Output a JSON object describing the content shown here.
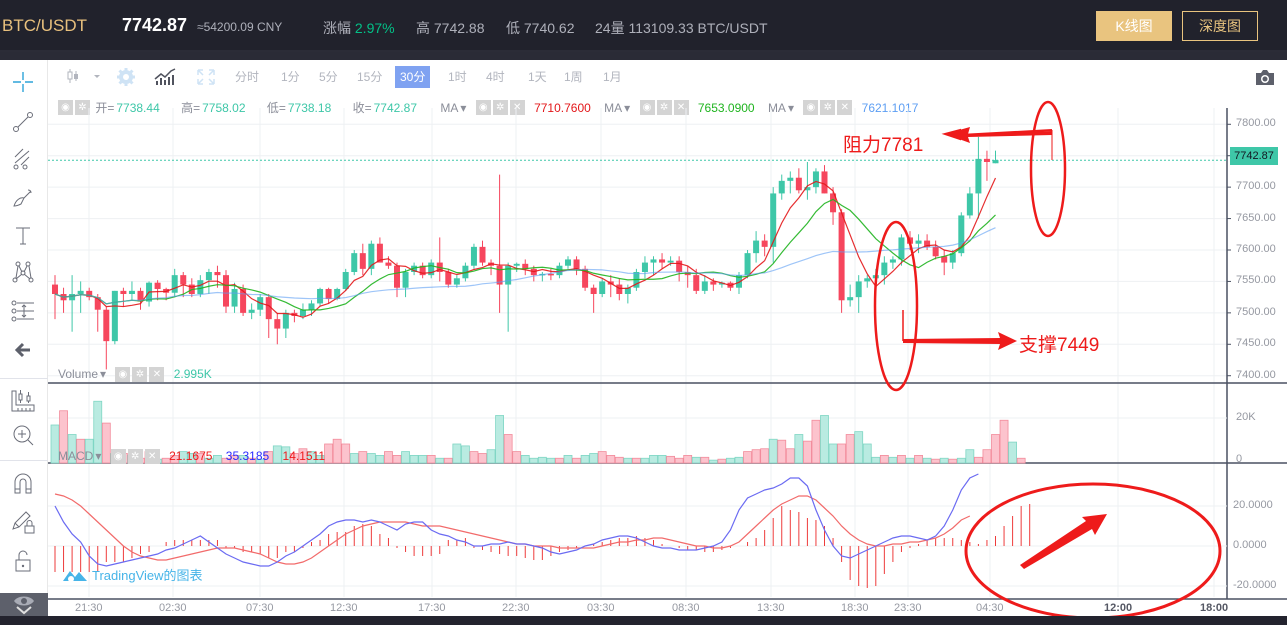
{
  "header": {
    "pair": "BTC/USDT",
    "last_price": "7742.87",
    "cny_price": "≈54200.09 CNY",
    "change_label": "涨幅",
    "change_value": "2.97%",
    "high_label": "高",
    "high_value": "7742.88",
    "low_label": "低",
    "low_value": "7740.62",
    "volume_label": "24量",
    "volume_value": "113109.33 BTC/USDT",
    "kline_button": "K线图",
    "depth_button": "深度图"
  },
  "toolbar": {
    "intervals": [
      "分时",
      "1分",
      "5分",
      "15分",
      "30分",
      "1时",
      "4时",
      "1天",
      "1周",
      "1月"
    ],
    "active_interval": "30分"
  },
  "left_tools": [
    "crosshair-icon",
    "trend-line-icon",
    "pitchfork-icon",
    "brush-icon",
    "text-icon",
    "pattern-icon",
    "measure-icon",
    "back-arrow-icon",
    "candles-ruler-icon",
    "zoom-in-icon",
    "magnet-icon",
    "lock-drawing-icon",
    "unlock-icon",
    "eye-icon"
  ],
  "legend": {
    "open_label": "开=",
    "open": "7738.44",
    "high_label": "高=",
    "high": "7758.02",
    "low_label": "低=",
    "low": "7738.18",
    "close_label": "收=",
    "close": "7742.87",
    "ma_label": "MA",
    "ma1": "7710.7600",
    "ma1_color": "#e3171a",
    "ma2": "7653.0900",
    "ma2_color": "#1fb41f",
    "ma3": "7621.1017",
    "ma3_color": "#5d9ef3"
  },
  "volume_legend": {
    "label": "Volume",
    "value": "2.995K"
  },
  "macd_legend": {
    "label": "MACD",
    "hist": "21.1675",
    "macd": "35.3185",
    "signal": "14.1511"
  },
  "watermark": "TradingView的图表",
  "annotations": {
    "resistance": "阻力7781",
    "support": "支撑7449"
  },
  "colors": {
    "up": "#3ec7a8",
    "down": "#f6465d",
    "accent": "#e9c47f",
    "active_tab": "#7fa2f1",
    "annotation": "#ee1b1b"
  },
  "chart_data": {
    "type": "candlestick",
    "title": "BTC/USDT 30分",
    "price_axis": {
      "ticks": [
        "7800.00",
        "7750.00",
        "7700.00",
        "7650.00",
        "7600.00",
        "7550.00",
        "7500.00",
        "7450.00",
        "7400.00"
      ],
      "range": [
        7390,
        7810
      ]
    },
    "current_price": "7742.87",
    "time_axis": [
      "21:30",
      "02:30",
      "07:30",
      "12:30",
      "17:30",
      "22:30",
      "03:30",
      "08:30",
      "13:30",
      "18:30",
      "23:30",
      "04:30",
      "12:00",
      "18:00"
    ],
    "volume_axis": {
      "ticks": [
        "20K",
        "0"
      ]
    },
    "macd_axis": {
      "ticks": [
        "20.0000",
        "0.0000",
        "-20.0000"
      ]
    },
    "candles": [
      [
        7545,
        7560,
        7490,
        7530
      ],
      [
        7530,
        7540,
        7500,
        7520
      ],
      [
        7520,
        7560,
        7470,
        7530
      ],
      [
        7530,
        7550,
        7500,
        7535
      ],
      [
        7535,
        7540,
        7520,
        7525
      ],
      [
        7525,
        7530,
        7470,
        7505
      ],
      [
        7505,
        7510,
        7410,
        7455
      ],
      [
        7455,
        7535,
        7450,
        7535
      ],
      [
        7535,
        7540,
        7510,
        7530
      ],
      [
        7530,
        7550,
        7520,
        7535
      ],
      [
        7535,
        7540,
        7505,
        7518
      ],
      [
        7518,
        7550,
        7510,
        7548
      ],
      [
        7548,
        7552,
        7520,
        7538
      ],
      [
        7538,
        7540,
        7520,
        7532
      ],
      [
        7532,
        7570,
        7525,
        7560
      ],
      [
        7560,
        7565,
        7525,
        7545
      ],
      [
        7545,
        7555,
        7525,
        7530
      ],
      [
        7530,
        7560,
        7525,
        7552
      ],
      [
        7552,
        7570,
        7530,
        7565
      ],
      [
        7565,
        7575,
        7540,
        7560
      ],
      [
        7560,
        7568,
        7500,
        7510
      ],
      [
        7510,
        7548,
        7500,
        7538
      ],
      [
        7538,
        7545,
        7495,
        7500
      ],
      [
        7500,
        7515,
        7490,
        7505
      ],
      [
        7505,
        7530,
        7495,
        7525
      ],
      [
        7525,
        7530,
        7460,
        7490
      ],
      [
        7490,
        7500,
        7450,
        7475
      ],
      [
        7475,
        7505,
        7460,
        7500
      ],
      [
        7500,
        7505,
        7485,
        7495
      ],
      [
        7495,
        7515,
        7490,
        7505
      ],
      [
        7505,
        7520,
        7495,
        7515
      ],
      [
        7515,
        7540,
        7510,
        7538
      ],
      [
        7538,
        7540,
        7515,
        7522
      ],
      [
        7522,
        7540,
        7520,
        7538
      ],
      [
        7538,
        7570,
        7535,
        7565
      ],
      [
        7565,
        7600,
        7560,
        7595
      ],
      [
        7595,
        7610,
        7560,
        7570
      ],
      [
        7570,
        7615,
        7560,
        7610
      ],
      [
        7610,
        7620,
        7590,
        7580
      ],
      [
        7580,
        7590,
        7570,
        7575
      ],
      [
        7575,
        7580,
        7525,
        7540
      ],
      [
        7540,
        7570,
        7525,
        7565
      ],
      [
        7565,
        7580,
        7560,
        7575
      ],
      [
        7575,
        7580,
        7555,
        7560
      ],
      [
        7560,
        7585,
        7555,
        7580
      ],
      [
        7580,
        7620,
        7550,
        7565
      ],
      [
        7565,
        7570,
        7540,
        7545
      ],
      [
        7545,
        7560,
        7540,
        7555
      ],
      [
        7555,
        7580,
        7550,
        7575
      ],
      [
        7575,
        7610,
        7570,
        7605
      ],
      [
        7605,
        7615,
        7575,
        7580
      ],
      [
        7580,
        7585,
        7560,
        7575
      ],
      [
        7575,
        7720,
        7500,
        7545
      ],
      [
        7545,
        7580,
        7470,
        7575
      ],
      [
        7575,
        7580,
        7565,
        7578
      ],
      [
        7578,
        7585,
        7560,
        7570
      ],
      [
        7570,
        7575,
        7550,
        7560
      ],
      [
        7560,
        7565,
        7550,
        7562
      ],
      [
        7562,
        7570,
        7552,
        7560
      ],
      [
        7560,
        7580,
        7555,
        7575
      ],
      [
        7575,
        7590,
        7570,
        7585
      ],
      [
        7585,
        7590,
        7560,
        7570
      ],
      [
        7570,
        7575,
        7535,
        7540
      ],
      [
        7540,
        7545,
        7500,
        7530
      ],
      [
        7530,
        7555,
        7525,
        7550
      ],
      [
        7550,
        7560,
        7525,
        7545
      ],
      [
        7545,
        7555,
        7520,
        7530
      ],
      [
        7530,
        7545,
        7515,
        7540
      ],
      [
        7540,
        7570,
        7535,
        7565
      ],
      [
        7565,
        7590,
        7555,
        7580
      ],
      [
        7580,
        7590,
        7560,
        7585
      ],
      [
        7585,
        7595,
        7570,
        7580
      ],
      [
        7580,
        7590,
        7575,
        7583
      ],
      [
        7583,
        7590,
        7550,
        7565
      ],
      [
        7565,
        7575,
        7540,
        7560
      ],
      [
        7560,
        7570,
        7530,
        7535
      ],
      [
        7535,
        7560,
        7530,
        7550
      ],
      [
        7550,
        7555,
        7535,
        7545
      ],
      [
        7545,
        7550,
        7540,
        7548
      ],
      [
        7548,
        7550,
        7535,
        7540
      ],
      [
        7540,
        7565,
        7530,
        7560
      ],
      [
        7560,
        7600,
        7555,
        7595
      ],
      [
        7595,
        7630,
        7580,
        7615
      ],
      [
        7615,
        7625,
        7590,
        7605
      ],
      [
        7605,
        7700,
        7580,
        7690
      ],
      [
        7690,
        7720,
        7680,
        7710
      ],
      [
        7710,
        7725,
        7690,
        7715
      ],
      [
        7715,
        7730,
        7690,
        7695
      ],
      [
        7695,
        7740,
        7680,
        7700
      ],
      [
        7700,
        7730,
        7690,
        7725
      ],
      [
        7725,
        7735,
        7690,
        7690
      ],
      [
        7690,
        7700,
        7640,
        7660
      ],
      [
        7660,
        7665,
        7500,
        7520
      ],
      [
        7520,
        7545,
        7510,
        7525
      ],
      [
        7525,
        7560,
        7500,
        7550
      ],
      [
        7550,
        7560,
        7540,
        7555
      ],
      [
        7555,
        7570,
        7545,
        7560
      ],
      [
        7560,
        7590,
        7545,
        7580
      ],
      [
        7580,
        7590,
        7570,
        7585
      ],
      [
        7585,
        7625,
        7575,
        7620
      ],
      [
        7620,
        7630,
        7600,
        7610
      ],
      [
        7610,
        7625,
        7595,
        7615
      ],
      [
        7615,
        7625,
        7600,
        7605
      ],
      [
        7605,
        7615,
        7585,
        7590
      ],
      [
        7590,
        7600,
        7560,
        7580
      ],
      [
        7580,
        7600,
        7570,
        7595
      ],
      [
        7595,
        7660,
        7590,
        7655
      ],
      [
        7655,
        7700,
        7650,
        7690
      ],
      [
        7690,
        7780,
        7650,
        7745
      ],
      [
        7745,
        7758,
        7710,
        7740
      ],
      [
        7738,
        7758,
        7738,
        7743
      ]
    ],
    "volume": [
      [
        1,
        0.4
      ],
      [
        0,
        0.55
      ],
      [
        1,
        0.3
      ],
      [
        0,
        0.25
      ],
      [
        1,
        0.25
      ],
      [
        1,
        0.65
      ],
      [
        0,
        0.42
      ],
      [
        1,
        0.1
      ],
      [
        0,
        0.1
      ],
      [
        1,
        0.08
      ],
      [
        0,
        0.05
      ],
      [
        0,
        0.12
      ],
      [
        1,
        0.04
      ],
      [
        0,
        0.05
      ],
      [
        0,
        0.08
      ],
      [
        1,
        0.12
      ],
      [
        1,
        0.1
      ],
      [
        0,
        0.1
      ],
      [
        1,
        0.05
      ],
      [
        1,
        0.08
      ],
      [
        0,
        0.05
      ],
      [
        0,
        0.08
      ],
      [
        1,
        0.08
      ],
      [
        0,
        0.05
      ],
      [
        1,
        0.04
      ],
      [
        0,
        0.12
      ],
      [
        1,
        0.18
      ],
      [
        1,
        0.17
      ],
      [
        0,
        0.1
      ],
      [
        0,
        0.15
      ],
      [
        1,
        0.12
      ],
      [
        1,
        0.08
      ],
      [
        0,
        0.2
      ],
      [
        0,
        0.25
      ],
      [
        0,
        0.2
      ],
      [
        1,
        0.1
      ],
      [
        0,
        0.12
      ],
      [
        1,
        0.1
      ],
      [
        1,
        0.08
      ],
      [
        0,
        0.12
      ],
      [
        0,
        0.08
      ],
      [
        1,
        0.12
      ],
      [
        1,
        0.08
      ],
      [
        1,
        0.08
      ],
      [
        0,
        0.08
      ],
      [
        1,
        0.05
      ],
      [
        0,
        0.05
      ],
      [
        1,
        0.2
      ],
      [
        1,
        0.18
      ],
      [
        0,
        0.12
      ],
      [
        0,
        0.1
      ],
      [
        1,
        0.14
      ],
      [
        1,
        0.5
      ],
      [
        0,
        0.3
      ],
      [
        0,
        0.12
      ],
      [
        1,
        0.08
      ],
      [
        1,
        0.05
      ],
      [
        1,
        0.06
      ],
      [
        1,
        0.05
      ],
      [
        0,
        0.05
      ],
      [
        1,
        0.08
      ],
      [
        0,
        0.05
      ],
      [
        1,
        0.08
      ],
      [
        1,
        0.1
      ],
      [
        0,
        0.12
      ],
      [
        0,
        0.08
      ],
      [
        0,
        0.06
      ],
      [
        1,
        0.05
      ],
      [
        0,
        0.05
      ],
      [
        1,
        0.05
      ],
      [
        1,
        0.08
      ],
      [
        1,
        0.08
      ],
      [
        0,
        0.07
      ],
      [
        0,
        0.05
      ],
      [
        0,
        0.08
      ],
      [
        1,
        0.06
      ],
      [
        0,
        0.06
      ],
      [
        1,
        0.03
      ],
      [
        0,
        0.04
      ],
      [
        1,
        0.05
      ],
      [
        1,
        0.06
      ],
      [
        0,
        0.12
      ],
      [
        0,
        0.14
      ],
      [
        0,
        0.15
      ],
      [
        1,
        0.25
      ],
      [
        0,
        0.24
      ],
      [
        0,
        0.15
      ],
      [
        1,
        0.3
      ],
      [
        0,
        0.23
      ],
      [
        0,
        0.45
      ],
      [
        1,
        0.5
      ],
      [
        1,
        0.2
      ],
      [
        0,
        0.2
      ],
      [
        0,
        0.3
      ],
      [
        1,
        0.33
      ],
      [
        1,
        0.2
      ],
      [
        1,
        0.06
      ],
      [
        0,
        0.08
      ],
      [
        1,
        0.06
      ],
      [
        0,
        0.08
      ],
      [
        1,
        0.05
      ],
      [
        0,
        0.08
      ],
      [
        1,
        0.05
      ],
      [
        0,
        0.04
      ],
      [
        1,
        0.05
      ],
      [
        0,
        0.04
      ],
      [
        1,
        0.05
      ],
      [
        1,
        0.14
      ],
      [
        0,
        0.06
      ],
      [
        0,
        0.14
      ],
      [
        0,
        0.3
      ],
      [
        0,
        0.45
      ],
      [
        1,
        0.22
      ],
      [
        0,
        0.05
      ]
    ],
    "macd_line": [
      20,
      12,
      6,
      2,
      -5,
      -9,
      -10,
      -9,
      -8,
      -7,
      -6,
      -5,
      -4,
      -2,
      -1,
      1,
      3,
      5,
      2,
      -1,
      -4,
      -6,
      -8,
      -9,
      -10,
      -10,
      -8,
      -5,
      -3,
      0,
      3,
      6,
      10,
      12,
      13,
      13,
      12,
      13,
      12,
      10,
      8,
      11,
      12,
      12,
      8,
      6,
      5,
      3,
      2,
      0,
      0,
      1,
      1,
      2,
      1,
      1,
      0,
      -1,
      -3,
      -4,
      -3,
      -2,
      0,
      1,
      3,
      4,
      5,
      5,
      4,
      2,
      0,
      -1,
      -1,
      -2,
      -2,
      -2,
      -1,
      0,
      2,
      8,
      18,
      24,
      26,
      28,
      29,
      31,
      34,
      34,
      30,
      18,
      8,
      0,
      -5,
      -6,
      -4,
      -2,
      0,
      2,
      4,
      5,
      5,
      4,
      3,
      5,
      10,
      18,
      28,
      34,
      36
    ],
    "signal_line": [
      26,
      25,
      23,
      20,
      16,
      12,
      8,
      4,
      0,
      -3,
      -5,
      -6,
      -7,
      -7,
      -6,
      -5,
      -4,
      -3,
      -2,
      -1,
      -1,
      -1,
      -2,
      -3,
      -4,
      -6,
      -8,
      -9,
      -9,
      -8,
      -6,
      -3,
      0,
      3,
      6,
      8,
      10,
      11,
      12,
      12,
      12,
      12,
      11,
      10,
      10,
      10,
      9,
      8,
      7,
      6,
      5,
      4,
      3,
      2,
      1,
      1,
      0,
      0,
      0,
      -1,
      -1,
      -1,
      -1,
      -1,
      0,
      1,
      2,
      2,
      3,
      3,
      4,
      4,
      3,
      2,
      1,
      0,
      0,
      -1,
      -1,
      0,
      2,
      6,
      10,
      14,
      18,
      21,
      23,
      25,
      25,
      23,
      19,
      15,
      10,
      6,
      3,
      1,
      0,
      0,
      1,
      1,
      2,
      2,
      3,
      4,
      6,
      9,
      13,
      15
    ],
    "macd_hist": [
      -13,
      -13,
      -13,
      -13,
      -13,
      -13,
      -8,
      -8,
      -8,
      -6,
      -4,
      -3,
      0,
      2,
      3,
      3,
      3,
      3,
      3,
      3,
      -1,
      -1,
      -3,
      -3,
      -4,
      -6,
      -6,
      -3,
      -3,
      -1,
      2,
      3,
      6,
      7,
      7,
      10,
      11,
      10,
      6,
      4,
      -1,
      -3,
      -5,
      -5,
      -5,
      -4,
      3,
      3,
      4,
      -1,
      -2,
      -3,
      -4,
      -5,
      -5,
      -6,
      -7,
      -7,
      -5,
      -3,
      -2,
      -1,
      0,
      1,
      2,
      3,
      4,
      4,
      5,
      4,
      3,
      1,
      0,
      -1,
      -2,
      -2,
      -3,
      -3,
      -2,
      -1,
      0,
      2,
      4,
      8,
      14,
      20,
      18,
      17,
      14,
      13,
      10,
      4,
      -8,
      -17,
      -20,
      -21,
      -20,
      -14,
      -8,
      -3,
      -1,
      1,
      3,
      4,
      4,
      4,
      3,
      2,
      1,
      3,
      5,
      10,
      15,
      20,
      21
    ]
  }
}
